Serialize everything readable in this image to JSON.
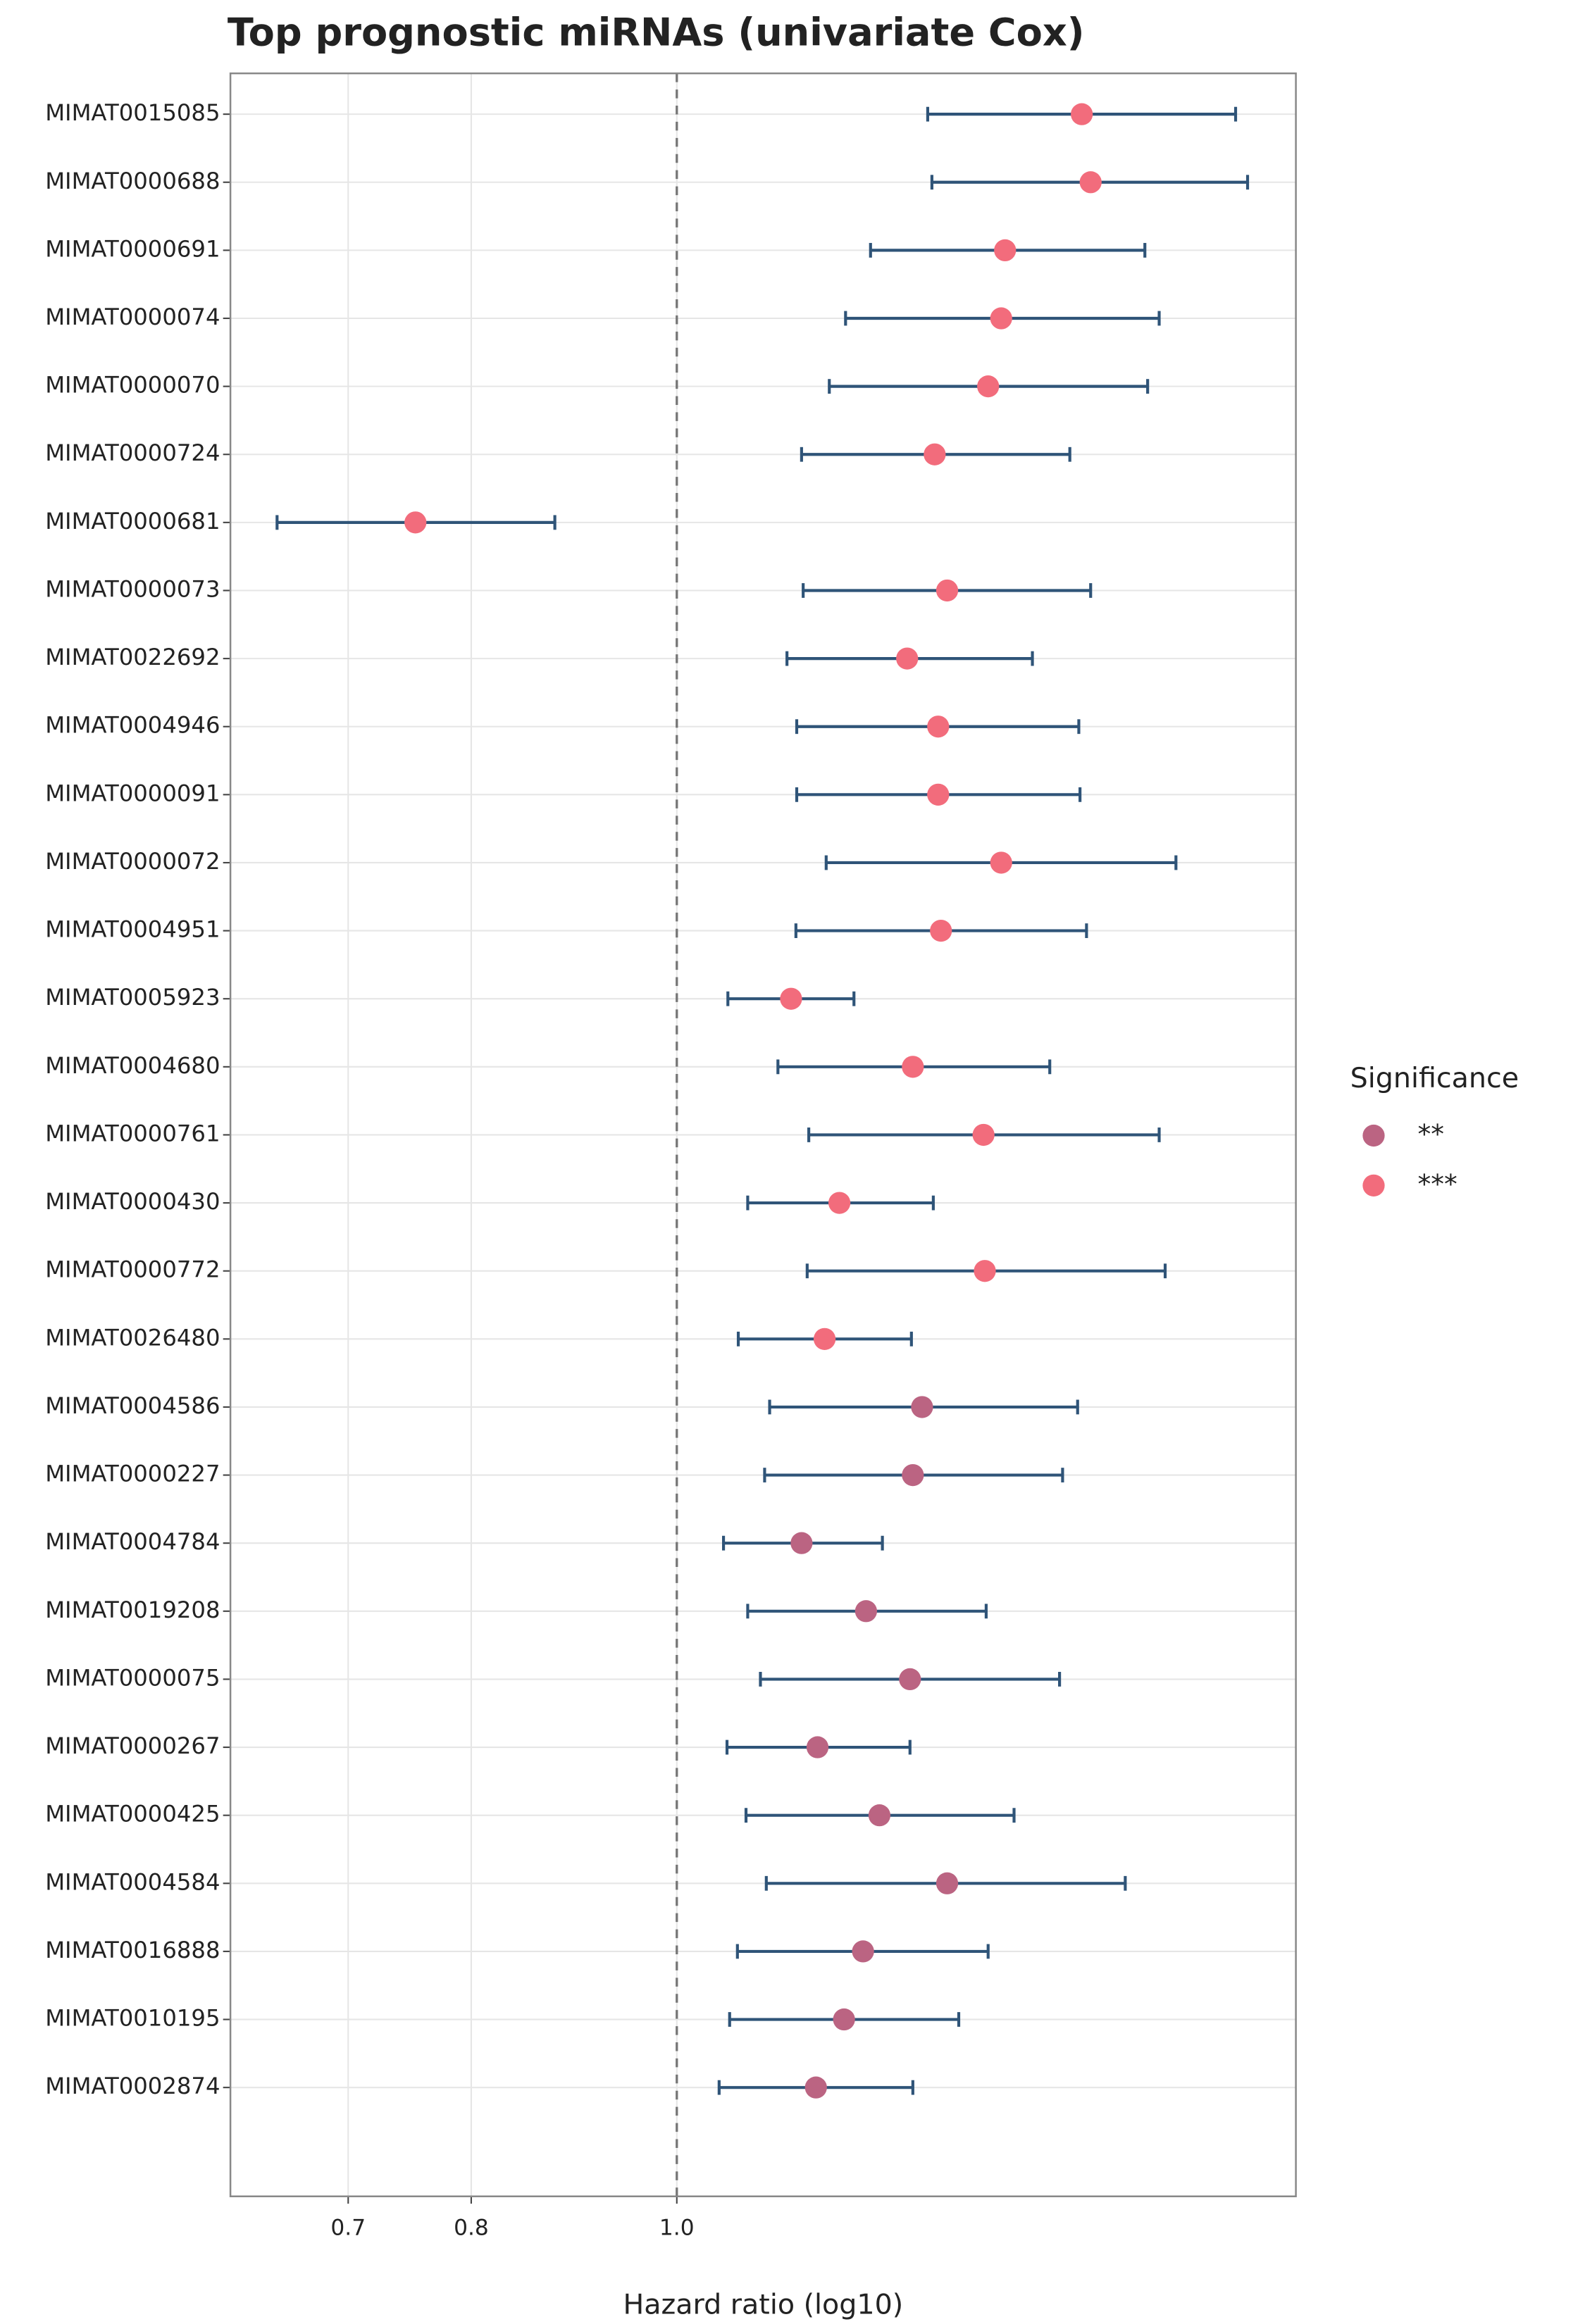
{
  "chart_data": {
    "type": "forest",
    "title": "Top prognostic miRNAs (univariate Cox)",
    "x_label": "Hazard ratio (log10)",
    "legend_title": "Significance",
    "xscale": "log",
    "grid": true,
    "legend_position": "right",
    "reference_line": 1,
    "whisker_color": "#2f5478",
    "xlim": [
      0.616,
      1.958
    ],
    "xticks": [
      0.7,
      0.8,
      {
        "value": 1,
        "label": "1.0"
      }
    ],
    "categories": [
      "MIMAT0015085",
      "MIMAT0000688",
      "MIMAT0000691",
      "MIMAT0000074",
      "MIMAT0000070",
      "MIMAT0000724",
      "MIMAT0000681",
      "MIMAT0000073",
      "MIMAT0022692",
      "MIMAT0004946",
      "MIMAT0000091",
      "MIMAT0000072",
      "MIMAT0004951",
      "MIMAT0005923",
      "MIMAT0004680",
      "MIMAT0000761",
      "MIMAT0000430",
      "MIMAT0000772",
      "MIMAT0026480",
      "MIMAT0004586",
      "MIMAT0000227",
      "MIMAT0004784",
      "MIMAT0019208",
      "MIMAT0000075",
      "MIMAT0000267",
      "MIMAT0000425",
      "MIMAT0004584",
      "MIMAT0016888",
      "MIMAT0010195",
      "MIMAT0002874"
    ],
    "series": [
      {
        "name": "**",
        "color": "#bb6482",
        "values": [
          null,
          null,
          null,
          null,
          null,
          null,
          null,
          null,
          null,
          null,
          null,
          null,
          null,
          null,
          null,
          null,
          null,
          null,
          null,
          1.305,
          1.292,
          1.145,
          1.228,
          1.288,
          1.165,
          1.246,
          1.341,
          1.224,
          1.199,
          1.163
        ],
        "low": [
          null,
          null,
          null,
          null,
          null,
          null,
          null,
          null,
          null,
          null,
          null,
          null,
          null,
          null,
          null,
          null,
          null,
          null,
          null,
          1.106,
          1.1,
          1.052,
          1.08,
          1.095,
          1.056,
          1.078,
          1.102,
          1.068,
          1.059,
          1.047
        ],
        "high": [
          null,
          null,
          null,
          null,
          null,
          null,
          null,
          null,
          null,
          null,
          null,
          null,
          null,
          null,
          null,
          null,
          null,
          null,
          null,
          1.545,
          1.52,
          1.25,
          1.399,
          1.515,
          1.288,
          1.442,
          1.627,
          1.402,
          1.358,
          1.292
        ]
      },
      {
        "name": "***",
        "color": "#f26c7c",
        "values": [
          1.552,
          1.567,
          1.428,
          1.422,
          1.402,
          1.323,
          0.753,
          1.341,
          1.284,
          1.328,
          1.328,
          1.422,
          1.332,
          1.132,
          1.292,
          1.395,
          1.193,
          1.397,
          1.174,
          null,
          null,
          null,
          null,
          null,
          null,
          null,
          null,
          null,
          null,
          null
        ],
        "low": [
          1.313,
          1.319,
          1.234,
          1.201,
          1.18,
          1.145,
          0.648,
          1.147,
          1.127,
          1.139,
          1.139,
          1.176,
          1.138,
          1.057,
          1.116,
          1.154,
          1.08,
          1.152,
          1.069,
          null,
          null,
          null,
          null,
          null,
          null,
          null,
          null,
          null,
          null,
          null
        ],
        "high": [
          1.834,
          1.858,
          1.662,
          1.688,
          1.667,
          1.532,
          0.876,
          1.567,
          1.471,
          1.547,
          1.549,
          1.719,
          1.56,
          1.212,
          1.499,
          1.688,
          1.321,
          1.699,
          1.29,
          null,
          null,
          null,
          null,
          null,
          null,
          null,
          null,
          null,
          null,
          null
        ]
      }
    ]
  }
}
